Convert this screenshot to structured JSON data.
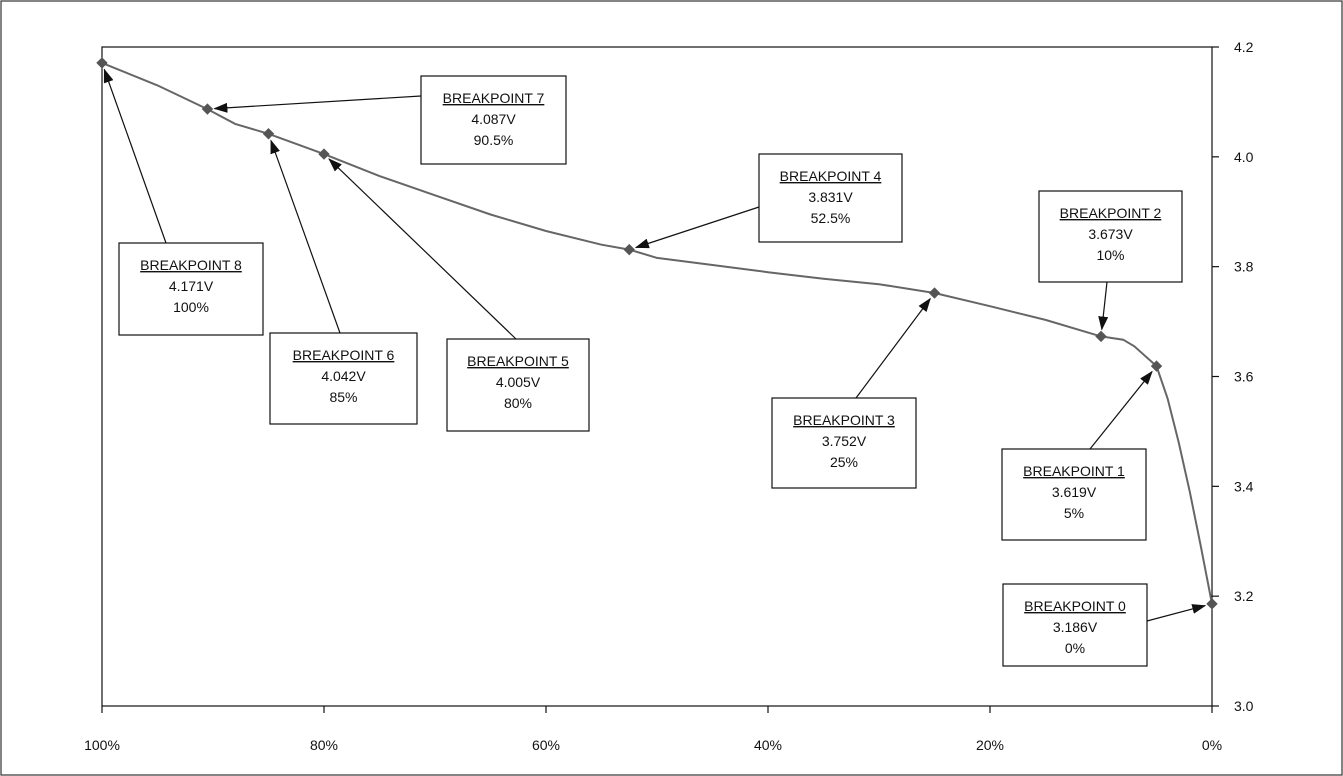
{
  "chart_data": {
    "type": "line",
    "title": "",
    "xlabel": "",
    "ylabel": "",
    "x_axis_reversed": true,
    "xlim": [
      100,
      0
    ],
    "ylim": [
      3.0,
      4.2
    ],
    "y_axis_side": "right",
    "grid": false,
    "x_ticks": [
      "100%",
      "80%",
      "60%",
      "40%",
      "20%",
      "0%"
    ],
    "x_tick_values": [
      100,
      80,
      60,
      40,
      20,
      0
    ],
    "y_ticks": [
      "3.0",
      "3.2",
      "3.4",
      "3.6",
      "3.8",
      "4.0",
      "4.2"
    ],
    "y_tick_values": [
      3.0,
      3.2,
      3.4,
      3.6,
      3.8,
      4.0,
      4.2
    ],
    "curve": {
      "x": [
        100,
        95,
        90.5,
        88,
        85,
        82,
        80,
        75,
        70,
        65,
        60,
        55,
        52.5,
        50,
        45,
        40,
        35,
        30,
        25,
        20,
        15,
        10,
        8,
        7,
        5,
        4,
        3,
        2,
        1,
        0
      ],
      "y": [
        4.171,
        4.13,
        4.087,
        4.06,
        4.042,
        4.02,
        4.005,
        3.965,
        3.93,
        3.895,
        3.865,
        3.84,
        3.831,
        3.816,
        3.803,
        3.79,
        3.778,
        3.768,
        3.752,
        3.728,
        3.703,
        3.673,
        3.667,
        3.655,
        3.619,
        3.56,
        3.48,
        3.39,
        3.29,
        3.186
      ]
    },
    "breakpoints": [
      {
        "label": "BREAKPOINT 0",
        "voltage": "3.186V",
        "soc": "0%",
        "x": 0,
        "y": 3.186
      },
      {
        "label": "BREAKPOINT 1",
        "voltage": "3.619V",
        "soc": "5%",
        "x": 5,
        "y": 3.619
      },
      {
        "label": "BREAKPOINT 2",
        "voltage": "3.673V",
        "soc": "10%",
        "x": 10,
        "y": 3.673
      },
      {
        "label": "BREAKPOINT 3",
        "voltage": "3.752V",
        "soc": "25%",
        "x": 25,
        "y": 3.752
      },
      {
        "label": "BREAKPOINT 4",
        "voltage": "3.831V",
        "soc": "52.5%",
        "x": 52.5,
        "y": 3.831
      },
      {
        "label": "BREAKPOINT 5",
        "voltage": "4.005V",
        "soc": "80%",
        "x": 80,
        "y": 4.005
      },
      {
        "label": "BREAKPOINT 6",
        "voltage": "4.042V",
        "soc": "85%",
        "x": 85,
        "y": 4.042
      },
      {
        "label": "BREAKPOINT 7",
        "voltage": "4.087V",
        "soc": "90.5%",
        "x": 90.5,
        "y": 4.087
      },
      {
        "label": "BREAKPOINT 8",
        "voltage": "4.171V",
        "soc": "100%",
        "x": 100,
        "y": 4.171
      }
    ],
    "colors": {
      "curve": "#666666",
      "marker": "#555555",
      "axis": "#111111",
      "frame": "#333333"
    }
  }
}
